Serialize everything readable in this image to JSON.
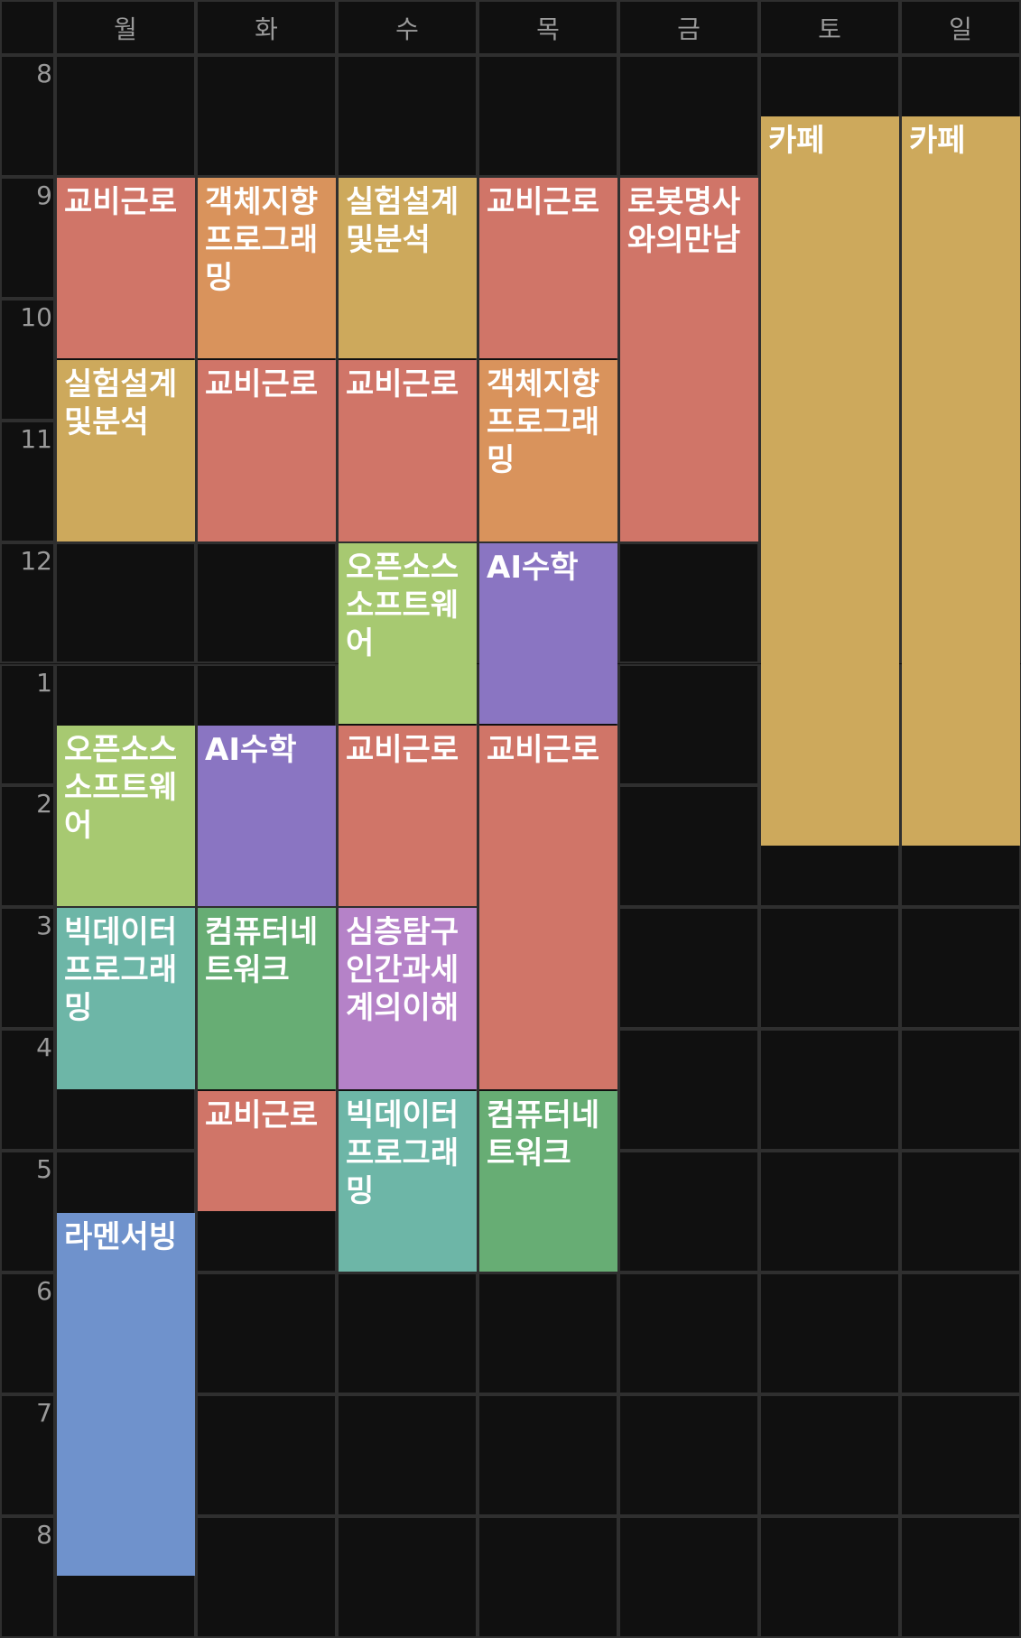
{
  "days": [
    {
      "label": "월"
    },
    {
      "label": "화"
    },
    {
      "label": "수"
    },
    {
      "label": "목"
    },
    {
      "label": "금"
    },
    {
      "label": "토"
    },
    {
      "label": "일"
    }
  ],
  "hours": [
    "8",
    "9",
    "10",
    "11",
    "12",
    "1",
    "2",
    "3",
    "4",
    "5",
    "6",
    "7",
    "8"
  ],
  "colors": {
    "red": "#d07568",
    "orange": "#d9935c",
    "gold": "#cda95c",
    "green": "#a7c971",
    "purple": "#8a75c2",
    "violet": "#b582c8",
    "teal": "#6db6a7",
    "darkgreen": "#67ad74",
    "blue": "#6f92cc"
  },
  "events": [
    {
      "day": 0,
      "start": 9,
      "end": 10.5,
      "title": "교비근로",
      "color": "red"
    },
    {
      "day": 0,
      "start": 10.5,
      "end": 12,
      "title": "실험설계및분석",
      "color": "gold"
    },
    {
      "day": 0,
      "start": 13.5,
      "end": 15,
      "title": "오픈소스소프트웨어",
      "color": "green"
    },
    {
      "day": 0,
      "start": 15,
      "end": 16.5,
      "title": "빅데이터프로그래밍",
      "color": "teal"
    },
    {
      "day": 0,
      "start": 17.5,
      "end": 20.5,
      "title": "라멘서빙",
      "color": "blue"
    },
    {
      "day": 1,
      "start": 9,
      "end": 10.5,
      "title": "객체지향프로그래밍",
      "color": "orange"
    },
    {
      "day": 1,
      "start": 10.5,
      "end": 12,
      "title": "교비근로",
      "color": "red"
    },
    {
      "day": 1,
      "start": 13.5,
      "end": 15,
      "title": "AI수학",
      "color": "purple"
    },
    {
      "day": 1,
      "start": 15,
      "end": 16.5,
      "title": "컴퓨터네트워크",
      "color": "darkgreen"
    },
    {
      "day": 1,
      "start": 16.5,
      "end": 17.5,
      "title": "교비근로",
      "color": "red"
    },
    {
      "day": 2,
      "start": 9,
      "end": 10.5,
      "title": "실험설계및분석",
      "color": "gold"
    },
    {
      "day": 2,
      "start": 10.5,
      "end": 12,
      "title": "교비근로",
      "color": "red"
    },
    {
      "day": 2,
      "start": 12,
      "end": 13.5,
      "title": "오픈소스소프트웨어",
      "color": "green"
    },
    {
      "day": 2,
      "start": 13.5,
      "end": 15,
      "title": "교비근로",
      "color": "red"
    },
    {
      "day": 2,
      "start": 15,
      "end": 16.5,
      "title": "심층탐구인간과세계의이해",
      "color": "violet"
    },
    {
      "day": 2,
      "start": 16.5,
      "end": 18,
      "title": "빅데이터프로그래밍",
      "color": "teal"
    },
    {
      "day": 3,
      "start": 9,
      "end": 10.5,
      "title": "교비근로",
      "color": "red"
    },
    {
      "day": 3,
      "start": 10.5,
      "end": 12,
      "title": "객체지향프로그래밍",
      "color": "orange"
    },
    {
      "day": 3,
      "start": 12,
      "end": 13.5,
      "title": "AI수학",
      "color": "purple"
    },
    {
      "day": 3,
      "start": 13.5,
      "end": 16.5,
      "title": "교비근로",
      "color": "red"
    },
    {
      "day": 3,
      "start": 16.5,
      "end": 18,
      "title": "컴퓨터네트워크",
      "color": "darkgreen"
    },
    {
      "day": 4,
      "start": 9,
      "end": 12,
      "title": "로봇명사와의만남",
      "color": "red"
    },
    {
      "day": 5,
      "start": 8.5,
      "end": 14.5,
      "title": "카페",
      "color": "gold"
    },
    {
      "day": 6,
      "start": 8.5,
      "end": 14.5,
      "title": "카페",
      "color": "gold"
    }
  ]
}
